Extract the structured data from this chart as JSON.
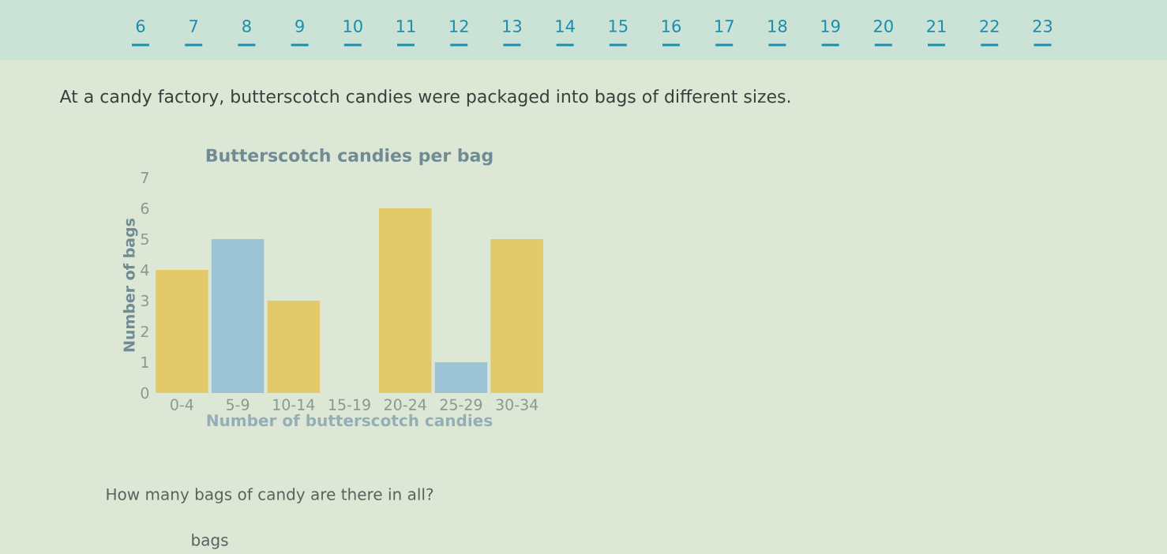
{
  "chart_data": {
    "type": "bar",
    "title": "Butterscotch candies per bag",
    "xlabel": "Number of butterscotch candies",
    "ylabel": "Number of bags",
    "categories": [
      "0-4",
      "5-9",
      "10-14",
      "15-19",
      "20-24",
      "25-29",
      "30-34"
    ],
    "values": [
      4,
      5,
      3,
      0,
      6,
      1,
      5
    ],
    "colors": [
      "#e2c96a",
      "#9dc3d6",
      "#e2c96a",
      "#9dc3d6",
      "#e2c96a",
      "#9dc3d6",
      "#e2c96a"
    ],
    "ylim": [
      0,
      7
    ],
    "yticks": [
      0,
      1,
      2,
      3,
      4,
      5,
      6,
      7
    ],
    "annotations": [
      "6",
      "7",
      "8",
      "9",
      "10",
      "11",
      "12",
      "13",
      "14",
      "15",
      "16",
      "17",
      "18",
      "19",
      "20",
      "21",
      "22",
      "23",
      "At a candy factory, butterscotch candies were packaged into bags of different sizes.",
      "How many bags of candy are there in all?",
      "bags"
    ]
  }
}
